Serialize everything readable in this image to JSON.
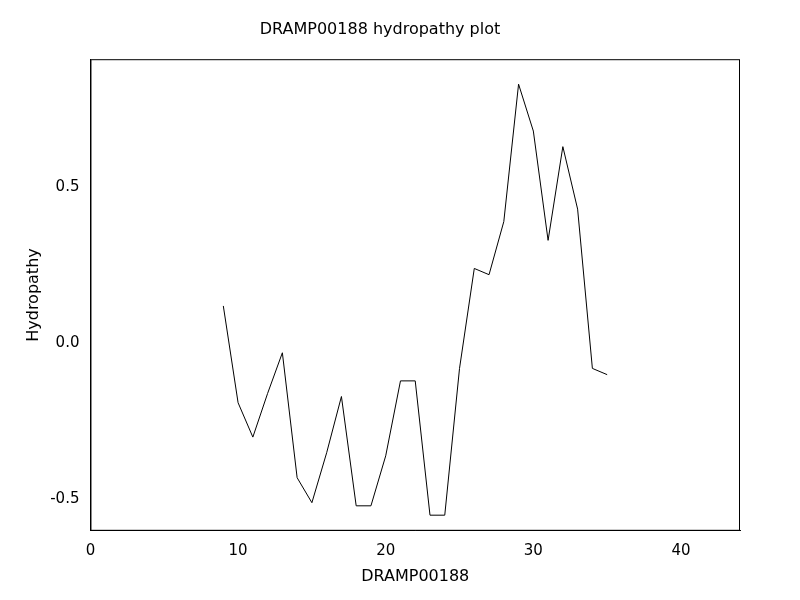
{
  "chart_data": {
    "type": "line",
    "title": "DRAMP00188 hydropathy plot",
    "x_label": "DRAMP00188",
    "y_label": "Hydropathy",
    "x": [
      9,
      10,
      11,
      12,
      13,
      14,
      15,
      16,
      17,
      18,
      19,
      20,
      21,
      22,
      23,
      24,
      25,
      26,
      27,
      28,
      29,
      30,
      31,
      32,
      33,
      34,
      35
    ],
    "values": [
      0.12,
      -0.19,
      -0.3,
      -0.16,
      -0.03,
      -0.43,
      -0.51,
      -0.35,
      -0.17,
      -0.52,
      -0.52,
      -0.36,
      -0.12,
      -0.12,
      -0.55,
      -0.55,
      -0.08,
      0.24,
      0.22,
      0.39,
      0.83,
      0.68,
      0.33,
      0.63,
      0.43,
      -0.08,
      -0.1
    ],
    "color": "#000000",
    "xlim": [
      0,
      44
    ],
    "xticks": [
      0,
      10,
      20,
      30,
      40
    ],
    "ylim": [
      -0.6,
      0.91
    ],
    "yticks": [
      {
        "value": -0.5,
        "label": "-0.5"
      },
      {
        "value": 0,
        "label": "0.0"
      },
      0.5
    ],
    "grid": false
  }
}
